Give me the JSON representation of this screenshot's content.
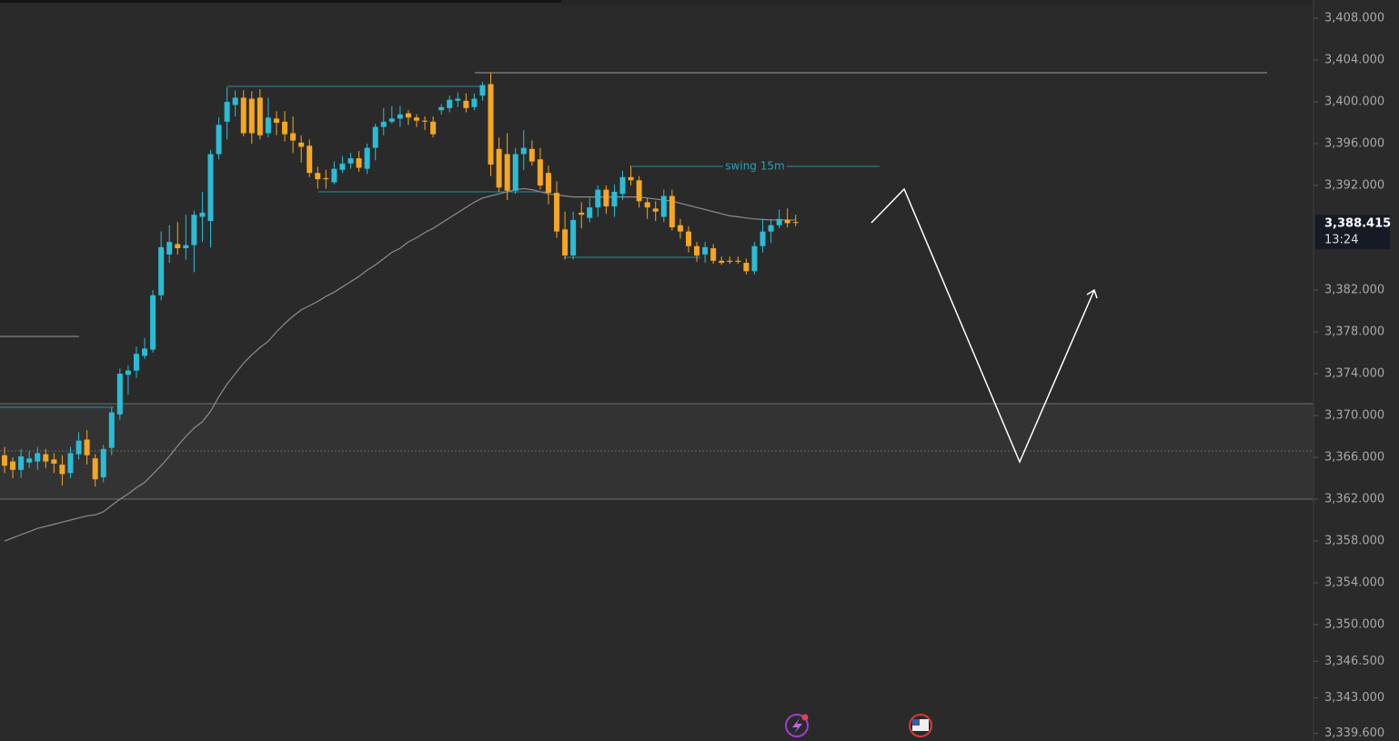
{
  "chart_data": {
    "type": "candlestick",
    "open": [
      3366.2,
      3365.6,
      3364.8,
      3365.5,
      3365.6,
      3366.3,
      3365.8,
      3365.3,
      3364.5,
      3366.3,
      3367.7,
      3365.9,
      3364.1,
      3366.9,
      3370.1,
      3373.9,
      3374.3,
      3375.7,
      3376.3,
      3381.5,
      3385.4,
      3386.4,
      3386.0,
      3386.3,
      3389.0,
      3388.6,
      3395.0,
      3398.1,
      3399.7,
      3400.4,
      3400.3,
      3400.4,
      3397.0,
      3398.4,
      3398.1,
      3397.0,
      3396.1,
      3395.8,
      3393.2,
      3392.7,
      3392.3,
      3393.5,
      3394.1,
      3394.6,
      3393.6,
      3395.6,
      3397.6,
      3398.1,
      3398.4,
      3398.9,
      3398.5,
      3398.2,
      3398.1,
      3399.2,
      3399.4,
      3400.1,
      3400.1,
      3399.5,
      3400.6,
      3401.7,
      3395.5,
      3395.0,
      3391.5,
      3395.0,
      3395.5,
      3394.5,
      3393.2,
      3391.3,
      3387.8,
      3385.3,
      3389.4,
      3388.9,
      3389.9,
      3391.6,
      3390.0,
      3391.2,
      3392.8,
      3392.5,
      3390.4,
      3389.8,
      3389.0,
      3391.0,
      3388.2,
      3387.6,
      3386.2,
      3385.4,
      3386.0,
      3384.8,
      3384.8,
      3384.8,
      3384.6,
      3383.8,
      3386.2,
      3387.6,
      3388.2,
      3388.7,
      3388.5
    ],
    "high": [
      3367.0,
      3366.0,
      3366.8,
      3366.6,
      3367.0,
      3366.8,
      3366.4,
      3366.2,
      3367.0,
      3368.4,
      3368.6,
      3366.3,
      3367.2,
      3370.8,
      3374.5,
      3374.8,
      3376.6,
      3377.4,
      3382.0,
      3387.6,
      3388.2,
      3388.5,
      3389.2,
      3389.6,
      3391.4,
      3395.4,
      3398.5,
      3401.4,
      3401.1,
      3401.1,
      3401.0,
      3401.2,
      3400.4,
      3399.1,
      3399.1,
      3398.6,
      3396.8,
      3396.4,
      3393.8,
      3393.5,
      3394.3,
      3394.8,
      3395.1,
      3395.3,
      3396.0,
      3397.9,
      3399.4,
      3399.6,
      3399.6,
      3399.2,
      3398.8,
      3398.6,
      3398.6,
      3399.8,
      3400.6,
      3400.9,
      3400.8,
      3400.8,
      3401.9,
      3402.8,
      3396.6,
      3397.0,
      3395.6,
      3397.3,
      3396.3,
      3395.6,
      3393.9,
      3392.4,
      3389.5,
      3389.5,
      3390.4,
      3390.8,
      3392.0,
      3392.0,
      3392.1,
      3393.4,
      3393.9,
      3392.9,
      3390.8,
      3390.5,
      3391.6,
      3391.6,
      3388.8,
      3388.1,
      3386.6,
      3386.6,
      3386.4,
      3385.2,
      3385.2,
      3385.2,
      3385.0,
      3386.6,
      3388.8,
      3388.8,
      3389.7,
      3389.8,
      3389.2
    ],
    "low": [
      3364.5,
      3364.0,
      3364.0,
      3365.0,
      3364.8,
      3365.0,
      3364.5,
      3363.3,
      3364.0,
      3365.8,
      3365.3,
      3363.2,
      3363.6,
      3366.2,
      3369.6,
      3372.0,
      3373.6,
      3375.4,
      3376.0,
      3381.0,
      3384.6,
      3385.4,
      3384.9,
      3383.7,
      3386.6,
      3386.1,
      3394.5,
      3396.4,
      3398.6,
      3396.7,
      3396.0,
      3396.4,
      3396.6,
      3396.8,
      3396.2,
      3395.1,
      3394.2,
      3392.8,
      3391.7,
      3391.7,
      3392.1,
      3393.2,
      3393.6,
      3393.3,
      3393.1,
      3394.4,
      3396.8,
      3397.9,
      3397.6,
      3397.8,
      3397.6,
      3397.3,
      3396.6,
      3398.8,
      3399.0,
      3399.5,
      3399.0,
      3399.2,
      3400.1,
      3392.9,
      3391.4,
      3390.6,
      3391.2,
      3393.5,
      3393.9,
      3391.6,
      3390.2,
      3387.0,
      3384.9,
      3384.9,
      3387.9,
      3388.5,
      3389.0,
      3389.3,
      3389.0,
      3390.6,
      3392.0,
      3389.9,
      3388.8,
      3388.6,
      3388.5,
      3387.7,
      3386.9,
      3385.6,
      3384.7,
      3384.6,
      3384.5,
      3384.4,
      3384.5,
      3384.5,
      3383.5,
      3383.5,
      3385.6,
      3386.5,
      3387.9,
      3388.0,
      3388.1
    ],
    "close": [
      3365.2,
      3364.8,
      3366.1,
      3365.9,
      3366.4,
      3365.6,
      3365.4,
      3364.4,
      3366.4,
      3367.6,
      3366.2,
      3363.9,
      3366.8,
      3370.3,
      3374.0,
      3374.3,
      3375.9,
      3376.4,
      3381.5,
      3386.1,
      3386.6,
      3386.0,
      3386.3,
      3389.2,
      3389.4,
      3395.0,
      3397.8,
      3400.0,
      3400.4,
      3397.0,
      3397.0,
      3396.8,
      3398.5,
      3398.0,
      3396.9,
      3396.3,
      3395.7,
      3393.2,
      3392.6,
      3392.6,
      3393.6,
      3394.1,
      3394.6,
      3393.7,
      3395.6,
      3397.6,
      3398.1,
      3398.4,
      3398.8,
      3398.5,
      3398.2,
      3398.1,
      3396.9,
      3399.5,
      3400.2,
      3400.3,
      3399.4,
      3400.3,
      3401.6,
      3394.0,
      3391.8,
      3391.5,
      3395.0,
      3395.6,
      3394.3,
      3392.0,
      3391.3,
      3387.6,
      3385.3,
      3388.7,
      3389.2,
      3389.9,
      3391.6,
      3390.0,
      3391.4,
      3392.8,
      3392.5,
      3390.5,
      3389.9,
      3389.5,
      3391.0,
      3388.0,
      3387.6,
      3386.2,
      3385.3,
      3386.1,
      3384.8,
      3384.6,
      3384.7,
      3384.7,
      3383.8,
      3386.2,
      3387.6,
      3388.2,
      3388.8,
      3388.4,
      3388.415
    ],
    "up_color": "#2bbcd6",
    "down_color": "#f5a623",
    "ma": {
      "color": "#8c8c8c",
      "values": [
        3358.0,
        3358.3,
        3358.6,
        3358.9,
        3359.2,
        3359.4,
        3359.6,
        3359.8,
        3360.0,
        3360.2,
        3360.4,
        3360.5,
        3360.8,
        3361.4,
        3362.0,
        3362.5,
        3363.1,
        3363.6,
        3364.4,
        3365.2,
        3366.1,
        3367.1,
        3368.0,
        3368.8,
        3369.4,
        3370.4,
        3371.8,
        3373.0,
        3374.0,
        3375.0,
        3375.8,
        3376.5,
        3377.1,
        3378.0,
        3378.8,
        3379.5,
        3380.1,
        3380.5,
        3380.9,
        3381.4,
        3381.8,
        3382.3,
        3382.8,
        3383.3,
        3383.9,
        3384.4,
        3385.0,
        3385.6,
        3386.0,
        3386.6,
        3387.0,
        3387.5,
        3387.9,
        3388.4,
        3388.9,
        3389.4,
        3389.9,
        3390.4,
        3390.8,
        3391.0,
        3391.2,
        3391.4,
        3391.6,
        3391.7,
        3391.6,
        3391.4,
        3391.2,
        3391.1,
        3391.0,
        3390.9,
        3390.9,
        3390.9,
        3390.9,
        3390.9,
        3390.9,
        3390.9,
        3390.9,
        3390.9,
        3390.8,
        3390.7,
        3390.6,
        3390.5,
        3390.3,
        3390.1,
        3389.9,
        3389.7,
        3389.5,
        3389.3,
        3389.1,
        3389.0,
        3388.9,
        3388.8,
        3388.75,
        3388.7,
        3388.7,
        3388.7,
        3388.7
      ]
    },
    "ylim": [
      3338.87,
      3409.74
    ],
    "yticks": [
      {
        "value": 3408,
        "label": "3,408.000"
      },
      {
        "value": 3404,
        "label": "3,404.000"
      },
      {
        "value": 3400,
        "label": "3,400.000"
      },
      {
        "value": 3396,
        "label": "3,396.000"
      },
      {
        "value": 3392,
        "label": "3,392.000"
      },
      {
        "value": 3382,
        "label": "3,382.000"
      },
      {
        "value": 3378,
        "label": "3,378.000"
      },
      {
        "value": 3374,
        "label": "3,374.000"
      },
      {
        "value": 3370,
        "label": "3,370.000"
      },
      {
        "value": 3366,
        "label": "3,366.000"
      },
      {
        "value": 3362,
        "label": "3,362.000"
      },
      {
        "value": 3358,
        "label": "3,358.000"
      },
      {
        "value": 3354,
        "label": "3,354.000"
      },
      {
        "value": 3350,
        "label": "3,350.000"
      },
      {
        "value": 3346.5,
        "label": "3,346.500"
      },
      {
        "value": 3343,
        "label": "3,343.000"
      },
      {
        "value": 3339.6,
        "label": "3,339.600"
      }
    ],
    "last_price": {
      "value": 3388.415,
      "label": "3,388.415"
    },
    "countdown": "13:24",
    "annotation": "swing 15m"
  }
}
